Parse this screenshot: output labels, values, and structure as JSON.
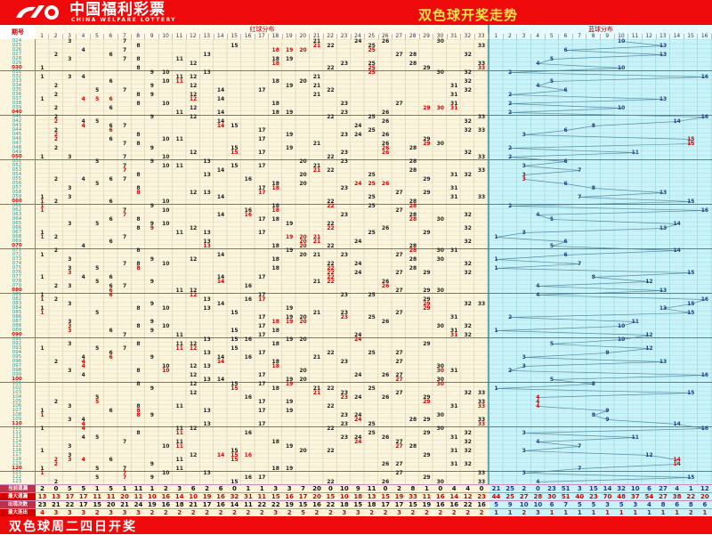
{
  "header": {
    "logo_cn": "中国福利彩票",
    "logo_en": "CHINA WELFARE LOTTERY",
    "title": "双色球开奖走势"
  },
  "table": {
    "issue_header": "期号",
    "red_header": "红球分布",
    "blue_header": "蓝球分布",
    "red_count": 33,
    "blue_count": 16
  },
  "colors": {
    "brand_red": "#ee0a0a",
    "hot_number": "#d40000",
    "blue_number": "#1c3a8c",
    "red_bg": "#fbf5dd",
    "blue_bg": "#c9f3f8",
    "title_yellow": "#ffe24a"
  },
  "rows": [
    {
      "issue": "024",
      "red": [
        3,
        7,
        21,
        24,
        26,
        30
      ],
      "blue": 10
    },
    {
      "issue": "025",
      "red": [
        8,
        15,
        21,
        22,
        25,
        33
      ],
      "blue": 13
    },
    {
      "issue": "026",
      "red": [
        4,
        7,
        18,
        19,
        20,
        25
      ],
      "blue": 6
    },
    {
      "issue": "027",
      "red": [
        2,
        6,
        13,
        27,
        28,
        32
      ],
      "blue": 13
    },
    {
      "issue": "028",
      "red": [
        3,
        7,
        8,
        11,
        18,
        19
      ],
      "blue": 5
    },
    {
      "issue": "029",
      "red": [
        12,
        18,
        23,
        25,
        28,
        33
      ],
      "blue": 4
    },
    {
      "issue": "030",
      "red": [
        1,
        8,
        22,
        25,
        29,
        33
      ],
      "blue": 10
    },
    {
      "issue": "031",
      "red": [
        9,
        10,
        13,
        25,
        30,
        32
      ],
      "blue": 2
    },
    {
      "issue": "032",
      "red": [
        1,
        3,
        4,
        11,
        12,
        21
      ],
      "blue": 16
    },
    {
      "issue": "033",
      "red": [
        6,
        10,
        11,
        18,
        20,
        32
      ],
      "blue": 5
    },
    {
      "issue": "034",
      "red": [
        2,
        9,
        12,
        19,
        21,
        31
      ],
      "blue": 4
    },
    {
      "issue": "035",
      "red": [
        5,
        7,
        14,
        17,
        22,
        32
      ],
      "blue": 6
    },
    {
      "issue": "036",
      "red": [
        2,
        8,
        9,
        12,
        21,
        31
      ],
      "blue": 2
    },
    {
      "issue": "037",
      "red": [
        1,
        4,
        5,
        6,
        12,
        14
      ],
      "blue": 13
    },
    {
      "issue": "038",
      "red": [
        8,
        10,
        18,
        23,
        27,
        31
      ],
      "blue": 2
    },
    {
      "issue": "039",
      "red": [
        2,
        6,
        12,
        29,
        30,
        31
      ],
      "blue": 10
    },
    {
      "issue": "040",
      "red": [
        11,
        14,
        18,
        19,
        23,
        26
      ],
      "blue": 2
    },
    {
      "issue": "041",
      "red": [
        2,
        9,
        12,
        22,
        25,
        33
      ],
      "blue": 16
    },
    {
      "issue": "042",
      "red": [
        2,
        4,
        5,
        14,
        26,
        32
      ],
      "blue": 14
    },
    {
      "issue": "043",
      "red": [
        4,
        6,
        7,
        14,
        15,
        24
      ],
      "blue": 8
    },
    {
      "issue": "044",
      "red": [
        2,
        6,
        17,
        25,
        32,
        33
      ],
      "blue": 6
    },
    {
      "issue": "045",
      "red": [
        2,
        8,
        19,
        23,
        24,
        26
      ],
      "blue": 3
    },
    {
      "issue": "046",
      "red": [
        2,
        6,
        10,
        11,
        17,
        29
      ],
      "blue": 15
    },
    {
      "issue": "047",
      "red": [
        7,
        8,
        21,
        26,
        29,
        30
      ],
      "blue": 15
    },
    {
      "issue": "048",
      "red": [
        2,
        9,
        15,
        19,
        26,
        28
      ],
      "blue": 2
    },
    {
      "issue": "049",
      "red": [
        12,
        15,
        17,
        23,
        26,
        32
      ],
      "blue": 11
    },
    {
      "issue": "050",
      "red": [
        1,
        3,
        7,
        10,
        22,
        33
      ],
      "blue": 2
    },
    {
      "issue": "051",
      "red": [
        5,
        9,
        13,
        20,
        23,
        28
      ],
      "blue": 6
    },
    {
      "issue": "052",
      "red": [
        7,
        10,
        11,
        15,
        17,
        21
      ],
      "blue": 3
    },
    {
      "issue": "053",
      "red": [
        7,
        14,
        21,
        22,
        28,
        33
      ],
      "blue": 7
    },
    {
      "issue": "054",
      "red": [
        8,
        13,
        20,
        25,
        31,
        32
      ],
      "blue": 3
    },
    {
      "issue": "055",
      "red": [
        2,
        4,
        6,
        7,
        16,
        29
      ],
      "blue": 3
    },
    {
      "issue": "056",
      "red": [
        5,
        18,
        20,
        24,
        25,
        26
      ],
      "blue": 6
    },
    {
      "issue": "057",
      "red": [
        3,
        8,
        17,
        18,
        23,
        31
      ],
      "blue": 8
    },
    {
      "issue": "058",
      "red": [
        8,
        12,
        13,
        17,
        27,
        29
      ],
      "blue": 13
    },
    {
      "issue": "059",
      "red": [
        1,
        3,
        14,
        25,
        31,
        33
      ],
      "blue": 7
    },
    {
      "issue": "060",
      "red": [
        1,
        2,
        6,
        10,
        22,
        28
      ],
      "blue": 15
    },
    {
      "issue": "061",
      "red": [
        1,
        9,
        18,
        22,
        25,
        28
      ],
      "blue": 2
    },
    {
      "issue": "062",
      "red": [
        1,
        7,
        10,
        16,
        18,
        27
      ],
      "blue": 16
    },
    {
      "issue": "063",
      "red": [
        7,
        14,
        16,
        23,
        28,
        32
      ],
      "blue": 4
    },
    {
      "issue": "064",
      "red": [
        6,
        8,
        17,
        18,
        28,
        30
      ],
      "blue": 5
    },
    {
      "issue": "065",
      "red": [
        3,
        5,
        9,
        10,
        19,
        22
      ],
      "blue": 14
    },
    {
      "issue": "066",
      "red": [
        8,
        9,
        12,
        22,
        26,
        32
      ],
      "blue": 13
    },
    {
      "issue": "067",
      "red": [
        1,
        11,
        13,
        17,
        25,
        29
      ],
      "blue": 3
    },
    {
      "issue": "068",
      "red": [
        1,
        2,
        7,
        19,
        20,
        21
      ],
      "blue": 1
    },
    {
      "issue": "069",
      "red": [
        6,
        13,
        20,
        21,
        24,
        32
      ],
      "blue": 6
    },
    {
      "issue": "070",
      "red": [
        4,
        13,
        18,
        20,
        22,
        28
      ],
      "blue": 5
    },
    {
      "issue": "071",
      "red": [
        2,
        8,
        19,
        28,
        30,
        31
      ],
      "blue": 14
    },
    {
      "issue": "072",
      "red": [
        1,
        14,
        20,
        21,
        23,
        27
      ],
      "blue": 6
    },
    {
      "issue": "073",
      "red": [
        3,
        9,
        12,
        18,
        28,
        30
      ],
      "blue": 1
    },
    {
      "issue": "074",
      "red": [
        7,
        8,
        10,
        22,
        24,
        32
      ],
      "blue": 7
    },
    {
      "issue": "075",
      "red": [
        3,
        5,
        8,
        18,
        22,
        28
      ],
      "blue": 1
    },
    {
      "issue": "076",
      "red": [
        3,
        22,
        24,
        27,
        29,
        32
      ],
      "blue": 15
    },
    {
      "issue": "077",
      "red": [
        1,
        4,
        6,
        14,
        17,
        22
      ],
      "blue": 8
    },
    {
      "issue": "078",
      "red": [
        5,
        9,
        14,
        21,
        22,
        26
      ],
      "blue": 12
    },
    {
      "issue": "079",
      "red": [
        2,
        3,
        6,
        7,
        16,
        26
      ],
      "blue": 4
    },
    {
      "issue": "080",
      "red": [
        6,
        11,
        12,
        27,
        29,
        30
      ],
      "blue": 13
    },
    {
      "issue": "081",
      "red": [
        1,
        6,
        12,
        17,
        23,
        25
      ],
      "blue": 4
    },
    {
      "issue": "082",
      "red": [
        1,
        2,
        13,
        16,
        17,
        29
      ],
      "blue": 16
    },
    {
      "issue": "083",
      "red": [
        3,
        9,
        14,
        29,
        32,
        33
      ],
      "blue": 15
    },
    {
      "issue": "084",
      "red": [
        1,
        8,
        10,
        13,
        19,
        29
      ],
      "blue": 13
    },
    {
      "issue": "085",
      "red": [
        1,
        5,
        15,
        21,
        23,
        27
      ],
      "blue": 15
    },
    {
      "issue": "086",
      "red": [
        17,
        19,
        20,
        23,
        25,
        31
      ],
      "blue": 2
    },
    {
      "issue": "087",
      "red": [
        3,
        9,
        18,
        19,
        20,
        26
      ],
      "blue": 11
    },
    {
      "issue": "088",
      "red": [
        3,
        8,
        10,
        17,
        30,
        32
      ],
      "blue": 10
    },
    {
      "issue": "089",
      "red": [
        3,
        6,
        9,
        15,
        18,
        31
      ],
      "blue": 1
    },
    {
      "issue": "090",
      "red": [
        7,
        11,
        17,
        24,
        31,
        32
      ],
      "blue": 12
    },
    {
      "issue": "091",
      "red": [
        13,
        15,
        16,
        19,
        20,
        24
      ],
      "blue": 10
    },
    {
      "issue": "092",
      "red": [
        3,
        8,
        11,
        12,
        18,
        29
      ],
      "blue": 5
    },
    {
      "issue": "093",
      "red": [
        1,
        5,
        7,
        11,
        12,
        15
      ],
      "blue": 12
    },
    {
      "issue": "094",
      "red": [
        6,
        13,
        17,
        22,
        25,
        27
      ],
      "blue": 9
    },
    {
      "issue": "095",
      "red": [
        4,
        6,
        9,
        14,
        16,
        21
      ],
      "blue": 3
    },
    {
      "issue": "096",
      "red": [
        2,
        4,
        14,
        18,
        23,
        27
      ],
      "blue": 13
    },
    {
      "issue": "097",
      "red": [
        4,
        10,
        12,
        13,
        18,
        30
      ],
      "blue": 3
    },
    {
      "issue": "098",
      "red": [
        3,
        8,
        10,
        20,
        30,
        31
      ],
      "blue": 2
    },
    {
      "issue": "099",
      "red": [
        4,
        12,
        17,
        24,
        26,
        27
      ],
      "blue": 16
    },
    {
      "issue": "100",
      "red": [
        13,
        14,
        19,
        20,
        27,
        30
      ],
      "blue": 5
    },
    {
      "issue": "101",
      "red": [
        8,
        12,
        15,
        17,
        19,
        30
      ],
      "blue": 8
    },
    {
      "issue": "102",
      "red": [
        9,
        15,
        18,
        21,
        22,
        25
      ],
      "blue": 1
    },
    {
      "issue": "103",
      "red": [
        12,
        21,
        23,
        27,
        32,
        33
      ],
      "blue": 15
    },
    {
      "issue": "104",
      "red": [
        5,
        16,
        23,
        24,
        26,
        29
      ],
      "blue": 4
    },
    {
      "issue": "105",
      "red": [
        2,
        5,
        17,
        19,
        29,
        33
      ],
      "blue": 4
    },
    {
      "issue": "106",
      "red": [
        3,
        8,
        11,
        22,
        31,
        33
      ],
      "blue": 4
    },
    {
      "issue": "107",
      "red": [
        1,
        6,
        8,
        13,
        17,
        19
      ],
      "blue": 9
    },
    {
      "issue": "108",
      "red": [
        1,
        8,
        9,
        23,
        24,
        30
      ],
      "blue": 8
    },
    {
      "issue": "109",
      "red": [
        3,
        4,
        24,
        28,
        29,
        33
      ],
      "blue": 9
    },
    {
      "issue": "110",
      "red": [
        4,
        13,
        17,
        23,
        25,
        33
      ],
      "blue": 14
    },
    {
      "issue": "111",
      "red": [
        1,
        4,
        11,
        12,
        22,
        30
      ],
      "blue": 16
    },
    {
      "issue": "112",
      "red": [
        8,
        11,
        16,
        25,
        29,
        32
      ],
      "blue": 3
    },
    {
      "issue": "113",
      "red": [
        4,
        5,
        23,
        24,
        26,
        31
      ],
      "blue": 11
    },
    {
      "issue": "114",
      "red": [
        7,
        11,
        18,
        24,
        27,
        32
      ],
      "blue": 4
    },
    {
      "issue": "115",
      "red": [
        3,
        10,
        11,
        19,
        27,
        28
      ],
      "blue": 7
    },
    {
      "issue": "116",
      "red": [
        1,
        15,
        20,
        22,
        31,
        32
      ],
      "blue": 3
    },
    {
      "issue": "117",
      "red": [
        3,
        12,
        14,
        15,
        16,
        29
      ],
      "blue": 12
    },
    {
      "issue": "118",
      "red": [
        2,
        3,
        4,
        6,
        11,
        15
      ],
      "blue": 14
    },
    {
      "issue": "119",
      "red": [
        2,
        9,
        26,
        27,
        31,
        32
      ],
      "blue": 14
    },
    {
      "issue": "120",
      "red": [
        1,
        5,
        7,
        11,
        18,
        19
      ],
      "blue": 7
    },
    {
      "issue": "121",
      "red": [
        1,
        7,
        10,
        13,
        27,
        33
      ],
      "blue": 3
    },
    {
      "issue": "122",
      "red": [
        5,
        7,
        9,
        16,
        17,
        29
      ],
      "blue": 15
    },
    {
      "issue": "123",
      "red": [
        2,
        15,
        22,
        26,
        30,
        33
      ],
      "blue": 4
    }
  ],
  "stats": [
    {
      "label": "当前遗漏",
      "red": [
        2,
        0,
        5,
        5,
        1,
        5,
        1,
        11,
        1,
        2,
        3,
        6,
        2,
        6,
        0,
        1,
        1,
        3,
        3,
        7,
        20,
        0,
        10,
        9,
        11,
        0,
        2,
        8,
        1,
        0,
        4,
        4,
        0
      ],
      "blue": [
        21,
        25,
        2,
        0,
        23,
        51,
        3,
        15,
        14,
        32,
        10,
        6,
        27,
        4,
        1,
        12
      ]
    },
    {
      "label": "最大遗漏",
      "red": [
        13,
        13,
        17,
        17,
        11,
        11,
        20,
        11,
        10,
        16,
        14,
        10,
        19,
        16,
        32,
        31,
        11,
        15,
        16,
        17,
        20,
        15,
        10,
        18,
        13,
        15,
        19,
        33,
        11,
        16,
        14,
        12,
        23
      ],
      "blue": [
        44,
        25,
        27,
        28,
        30,
        51,
        40,
        23,
        70,
        48,
        37,
        54,
        27,
        38,
        22,
        20
      ]
    },
    {
      "label": "出现次数",
      "red": [
        23,
        21,
        22,
        17,
        15,
        20,
        21,
        24,
        19,
        16,
        18,
        21,
        17,
        16,
        14,
        11,
        22,
        22,
        19,
        15,
        16,
        22,
        18,
        15,
        18,
        17,
        17,
        15,
        19,
        16,
        16,
        22,
        16
      ],
      "blue": [
        5,
        9,
        10,
        10,
        6,
        7,
        5,
        5,
        3,
        5,
        3,
        4,
        8,
        6,
        8,
        6
      ]
    },
    {
      "label": "最大连出",
      "red": [
        4,
        3,
        3,
        3,
        2,
        3,
        3,
        3,
        2,
        2,
        2,
        2,
        2,
        2,
        2,
        2,
        2,
        3,
        2,
        5,
        2,
        2,
        3,
        3,
        2,
        2,
        3,
        2,
        2,
        2,
        2,
        2,
        2
      ],
      "blue": [
        1,
        1,
        2,
        3,
        1,
        1,
        1,
        1,
        1,
        1,
        1,
        1,
        1,
        1,
        2,
        1
      ]
    }
  ],
  "footer": {
    "text": "双色球周二四日开奖"
  }
}
